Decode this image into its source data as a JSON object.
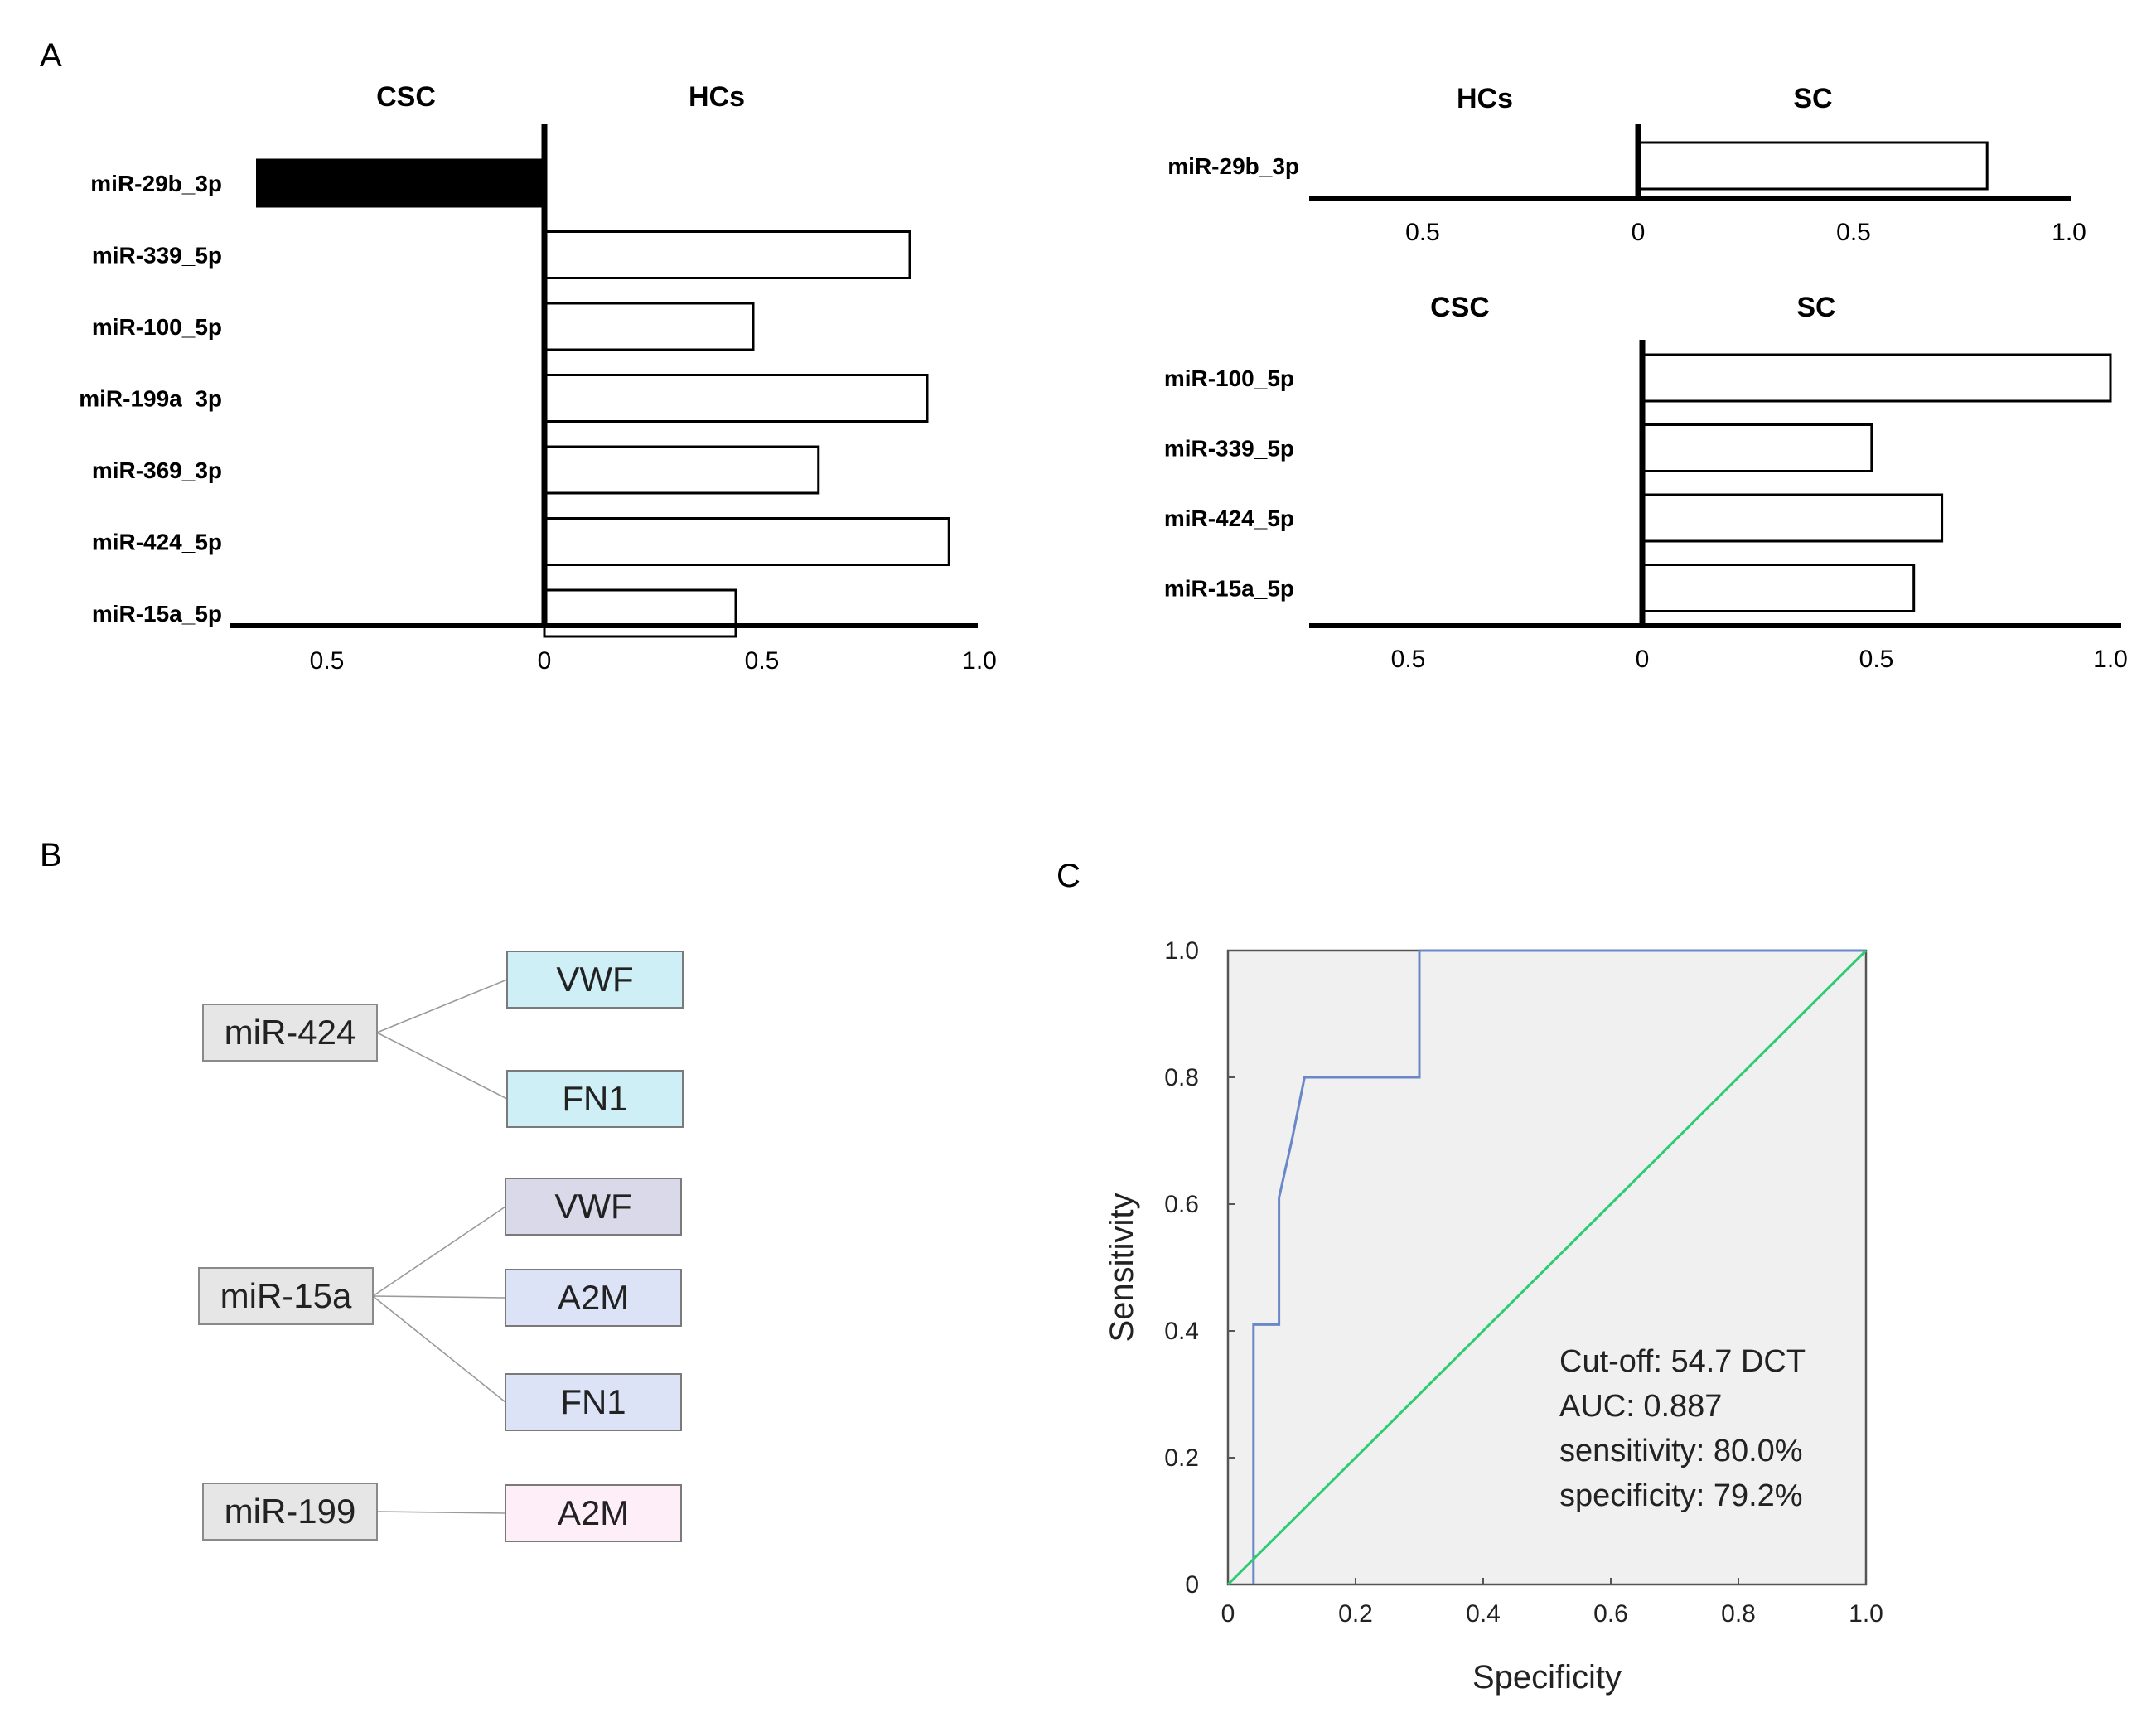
{
  "panel_labels": {
    "a": "A",
    "b": "B",
    "c": "C"
  },
  "chart_data": [
    {
      "id": "a_left",
      "type": "bar",
      "orientation": "horizontal-diverging",
      "left_group": "CSC",
      "right_group": "HCs",
      "categories": [
        "miR-29b_3p",
        "miR-339_5p",
        "miR-100_5p",
        "miR-199a_3p",
        "miR-369_3p",
        "miR-424_5p",
        "miR-15a_5p"
      ],
      "values": [
        -0.66,
        0.84,
        0.48,
        0.88,
        0.63,
        0.93,
        0.44
      ],
      "xlim": [
        -0.7,
        1.0
      ],
      "ticks": [
        {
          "value": -0.5,
          "label": "0.5"
        },
        {
          "value": 0,
          "label": "0"
        },
        {
          "value": 0.5,
          "label": "0.5"
        },
        {
          "value": 1.0,
          "label": "1.0"
        }
      ]
    },
    {
      "id": "a_right_top",
      "type": "bar",
      "orientation": "horizontal-diverging",
      "left_group": "HCs",
      "right_group": "SC",
      "categories": [
        "miR-29b_3p"
      ],
      "values": [
        0.81
      ],
      "xlim": [
        -0.75,
        1.0
      ],
      "ticks": [
        {
          "value": -0.5,
          "label": "0.5"
        },
        {
          "value": 0,
          "label": "0"
        },
        {
          "value": 0.5,
          "label": "0.5"
        },
        {
          "value": 1.0,
          "label": "1.0"
        }
      ]
    },
    {
      "id": "a_right_bottom",
      "type": "bar",
      "orientation": "horizontal-diverging",
      "left_group": "CSC",
      "right_group": "SC",
      "categories": [
        "miR-100_5p",
        "miR-339_5p",
        "miR-424_5p",
        "miR-15a_5p"
      ],
      "values": [
        1.0,
        0.49,
        0.64,
        0.58
      ],
      "xlim": [
        -0.7,
        1.02
      ],
      "ticks": [
        {
          "value": -0.5,
          "label": "0.5"
        },
        {
          "value": 0,
          "label": "0"
        },
        {
          "value": 0.5,
          "label": "0.5"
        },
        {
          "value": 1.0,
          "label": "1.0"
        }
      ]
    },
    {
      "id": "c_roc",
      "type": "line",
      "title": "",
      "xlabel": "Specificity",
      "ylabel": "Sensitivity",
      "xlim": [
        0,
        1.0
      ],
      "ylim": [
        0,
        1.0
      ],
      "xticks": [
        "0",
        "0.2",
        "0.4",
        "0.6",
        "0.8",
        "1.0"
      ],
      "yticks": [
        "0",
        "0.2",
        "0.4",
        "0.6",
        "0.8",
        "1.0"
      ],
      "series": [
        {
          "name": "ROC",
          "color": "#6a88c8",
          "x": [
            0.04,
            0.04,
            0.08,
            0.08,
            0.1,
            0.12,
            0.3,
            0.3,
            1.0
          ],
          "y": [
            0.0,
            0.41,
            0.41,
            0.61,
            0.7,
            0.8,
            0.8,
            1.0,
            1.0
          ]
        },
        {
          "name": "Reference",
          "color": "#2ecc71",
          "x": [
            0.0,
            1.0
          ],
          "y": [
            0.0,
            1.0
          ]
        }
      ],
      "annotations": [
        "Cut-off: 54.7 DCT",
        "AUC: 0.887",
        "sensitivity: 80.0%",
        "specificity: 79.2%"
      ]
    }
  ],
  "network": {
    "groups": [
      {
        "source": "miR-424",
        "targets": [
          {
            "label": "VWF",
            "color": "#cdeff5"
          },
          {
            "label": "FN1",
            "color": "#cdeff5"
          }
        ]
      },
      {
        "source": "miR-15a",
        "targets": [
          {
            "label": "VWF",
            "color": "#d9d9ea"
          },
          {
            "label": "A2M",
            "color": "#dde3f6"
          },
          {
            "label": "FN1",
            "color": "#dde3f6"
          }
        ]
      },
      {
        "source": "miR-199",
        "targets": [
          {
            "label": "A2M",
            "color": "#fdeef7"
          }
        ]
      }
    ]
  }
}
